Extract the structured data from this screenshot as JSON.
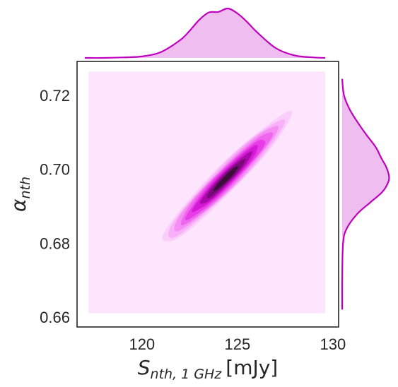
{
  "chart_data": {
    "type": "kde-joint",
    "xlabel": {
      "symbol": "S",
      "subscript": "nth, 1 GHz",
      "unit": "[mJy]"
    },
    "ylabel": {
      "symbol": "α",
      "subscript": "nth"
    },
    "x_ticks": [
      {
        "value": 120,
        "label": "120"
      },
      {
        "value": 125,
        "label": "125"
      },
      {
        "value": 130,
        "label": "130"
      }
    ],
    "y_ticks": [
      {
        "value": 0.66,
        "label": "0.66"
      },
      {
        "value": 0.68,
        "label": "0.68"
      },
      {
        "value": 0.7,
        "label": "0.70"
      },
      {
        "value": 0.72,
        "label": "0.72"
      }
    ],
    "xlim": [
      116.6,
      130.3
    ],
    "ylim": [
      0.6573,
      0.7292
    ],
    "grid": false,
    "colors": {
      "line": "#bf00bf",
      "marginal_fill": "#efbdef",
      "background_level": "#fde6fd",
      "contour_levels": [
        "#fbcdfb",
        "#f8b0f8",
        "#f48ef4",
        "#ef66ef",
        "#e83ce8",
        "#d41ad4",
        "#a80aa8",
        "#770b77",
        "#3a0f3a"
      ]
    },
    "joint": {
      "center": [
        124.4,
        0.6975
      ],
      "sigma_x": 1.3,
      "sigma_y": 0.0068,
      "rho": 0.96,
      "background_extent": {
        "x": [
          117.2,
          129.6
        ],
        "y": [
          0.661,
          0.7265
        ]
      }
    },
    "x_marginal": {
      "x": [
        117.0,
        118.0,
        119.0,
        120.0,
        121.0,
        122.0,
        122.5,
        123.0,
        123.5,
        124.0,
        124.5,
        125.0,
        125.5,
        126.0,
        127.0,
        128.0,
        129.0,
        129.6
      ],
      "density": [
        0.0,
        0.0,
        0.01,
        0.03,
        0.12,
        0.36,
        0.55,
        0.77,
        0.92,
        0.93,
        1.0,
        0.9,
        0.73,
        0.53,
        0.2,
        0.05,
        0.01,
        0.0
      ]
    },
    "y_marginal": {
      "y": [
        0.662,
        0.67,
        0.68,
        0.684,
        0.688,
        0.691,
        0.694,
        0.697,
        0.699,
        0.701,
        0.703,
        0.706,
        0.709,
        0.712,
        0.716,
        0.72,
        0.7245
      ],
      "density": [
        0.0,
        0.0,
        0.02,
        0.1,
        0.33,
        0.6,
        0.87,
        1.0,
        0.99,
        0.93,
        0.84,
        0.72,
        0.54,
        0.37,
        0.17,
        0.04,
        0.0
      ]
    }
  }
}
